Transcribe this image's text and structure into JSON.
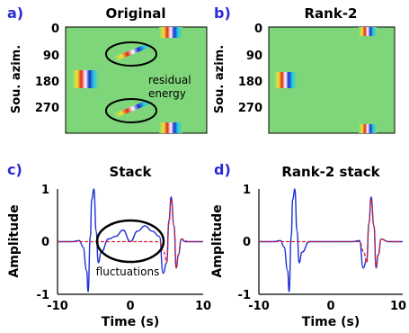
{
  "colors": {
    "field": "#7fd67a",
    "wave_blue": "#1f2fd6",
    "wave_red": "#d81f2f",
    "panel_letter": "#2a2ad8",
    "ellipse": "#000000"
  },
  "panels": [
    {
      "letter": "a)",
      "title": "Original",
      "ylabel": "Sou. azim.",
      "yticks": [
        "0",
        "90",
        "180",
        "270"
      ],
      "annotations": [
        "residual",
        "energy"
      ]
    },
    {
      "letter": "b)",
      "title": "Rank-2",
      "ylabel": "Sou. azim.",
      "yticks": [
        "0",
        "90",
        "180",
        "270"
      ]
    },
    {
      "letter": "c)",
      "title": "Stack",
      "ylabel": "Amplitude",
      "xlabel": "Time (s)",
      "xticks": [
        "-10",
        "0",
        "10"
      ],
      "yticks": [
        "1",
        "0",
        "-1"
      ],
      "annotation": "fluctuations"
    },
    {
      "letter": "d)",
      "title": "Rank-2 stack",
      "ylabel": "Amplitude",
      "xlabel": "Time (s)",
      "xticks": [
        "-10",
        "0",
        "10"
      ],
      "yticks": [
        "1",
        "0",
        "-1"
      ]
    }
  ],
  "chart_data": [
    {
      "type": "heatmap",
      "panel": "a)",
      "title": "Original",
      "ylabel": "Sou. azim.",
      "yticks": [
        0,
        90,
        180,
        270
      ],
      "ylim": [
        0,
        360
      ],
      "events": [
        {
          "azimuth": 0,
          "time_frac": 0.92
        },
        {
          "azimuth": 180,
          "time_frac": 0.1
        },
        {
          "azimuth": 360,
          "time_frac": 0.92
        },
        {
          "azimuth": 90,
          "time_frac": 0.55,
          "slanted": true
        },
        {
          "azimuth": 270,
          "time_frac": 0.55,
          "slanted": true
        }
      ]
    },
    {
      "type": "heatmap",
      "panel": "b)",
      "title": "Rank-2",
      "ylabel": "Sou. azim.",
      "yticks": [
        0,
        90,
        180,
        270
      ],
      "ylim": [
        0,
        360
      ],
      "events": [
        {
          "azimuth": 0,
          "time_frac": 0.76
        },
        {
          "azimuth": 180,
          "time_frac": 0.2
        },
        {
          "azimuth": 360,
          "time_frac": 0.76
        }
      ]
    },
    {
      "type": "line",
      "panel": "c)",
      "title": "Stack",
      "xlabel": "Time (s)",
      "ylabel": "Amplitude",
      "xlim": [
        -10,
        10
      ],
      "ylim": [
        -1,
        1
      ],
      "series": [
        {
          "color": "#1f2fd6",
          "style": "solid",
          "x": [
            -10,
            -8,
            -7,
            -6.5,
            -6,
            -5.8,
            -5.5,
            -5.3,
            -5,
            -4.7,
            -4.4,
            -4,
            -3,
            -2,
            -1,
            0,
            1,
            2,
            3,
            4,
            4.5,
            5,
            5.3,
            5.6,
            6,
            6.3,
            6.6,
            7,
            7.5,
            8,
            9,
            10
          ],
          "y": [
            0,
            0,
            0.02,
            -0.1,
            -0.55,
            -0.95,
            0.1,
            0.8,
            1.0,
            0.2,
            -0.4,
            -0.2,
            0.05,
            0.1,
            0.22,
            0.0,
            0.2,
            0.3,
            0.2,
            0.1,
            -0.6,
            -0.4,
            0.4,
            0.85,
            0.3,
            -0.5,
            -0.25,
            0.05,
            0,
            0,
            0,
            0
          ]
        },
        {
          "color": "#d81f2f",
          "style": "dashed",
          "x": [
            -10,
            0,
            4,
            4.6,
            5,
            5.3,
            5.6,
            6,
            6.3,
            6.6,
            7,
            8,
            10
          ],
          "y": [
            0,
            0,
            0,
            -0.2,
            -0.4,
            0.35,
            0.8,
            0.3,
            -0.5,
            -0.25,
            0.05,
            0,
            0
          ]
        }
      ]
    },
    {
      "type": "line",
      "panel": "d)",
      "title": "Rank-2 stack",
      "xlabel": "Time (s)",
      "ylabel": "Amplitude",
      "xlim": [
        -10,
        10
      ],
      "ylim": [
        -1,
        1
      ],
      "series": [
        {
          "color": "#1f2fd6",
          "style": "solid",
          "x": [
            -10,
            -8,
            -7,
            -6.5,
            -6,
            -5.8,
            -5.5,
            -5.3,
            -5,
            -4.7,
            -4.4,
            -4,
            -3,
            0,
            3,
            4,
            4.5,
            5,
            5.3,
            5.6,
            6,
            6.3,
            6.6,
            7,
            8,
            10
          ],
          "y": [
            0,
            0,
            0.02,
            -0.1,
            -0.55,
            -0.95,
            0.1,
            0.8,
            1.0,
            0.2,
            -0.4,
            -0.2,
            0.0,
            0.0,
            0.0,
            0.02,
            -0.5,
            -0.35,
            0.35,
            0.85,
            0.3,
            -0.5,
            -0.25,
            0.05,
            0,
            0
          ]
        },
        {
          "color": "#d81f2f",
          "style": "dashed",
          "x": [
            -10,
            0,
            4,
            4.6,
            5,
            5.3,
            5.6,
            6,
            6.3,
            6.6,
            7,
            8,
            10
          ],
          "y": [
            0,
            0,
            0,
            -0.2,
            -0.4,
            0.35,
            0.8,
            0.3,
            -0.5,
            -0.25,
            0.05,
            0,
            0
          ]
        }
      ]
    }
  ]
}
